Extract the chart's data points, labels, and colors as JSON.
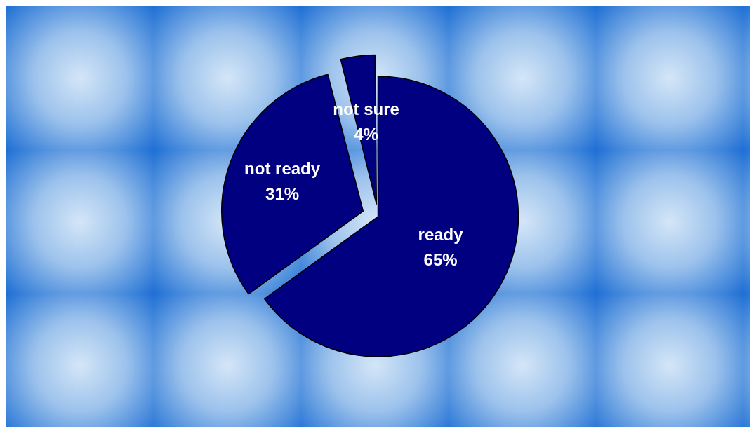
{
  "chart_data": {
    "type": "pie",
    "categories": [
      "ready",
      "not ready",
      "not sure"
    ],
    "values": [
      65,
      31,
      4
    ],
    "value_labels": [
      "65%",
      "31%",
      "4%"
    ],
    "colors": [
      "#000080",
      "#000080",
      "#000080"
    ],
    "legend": false
  }
}
